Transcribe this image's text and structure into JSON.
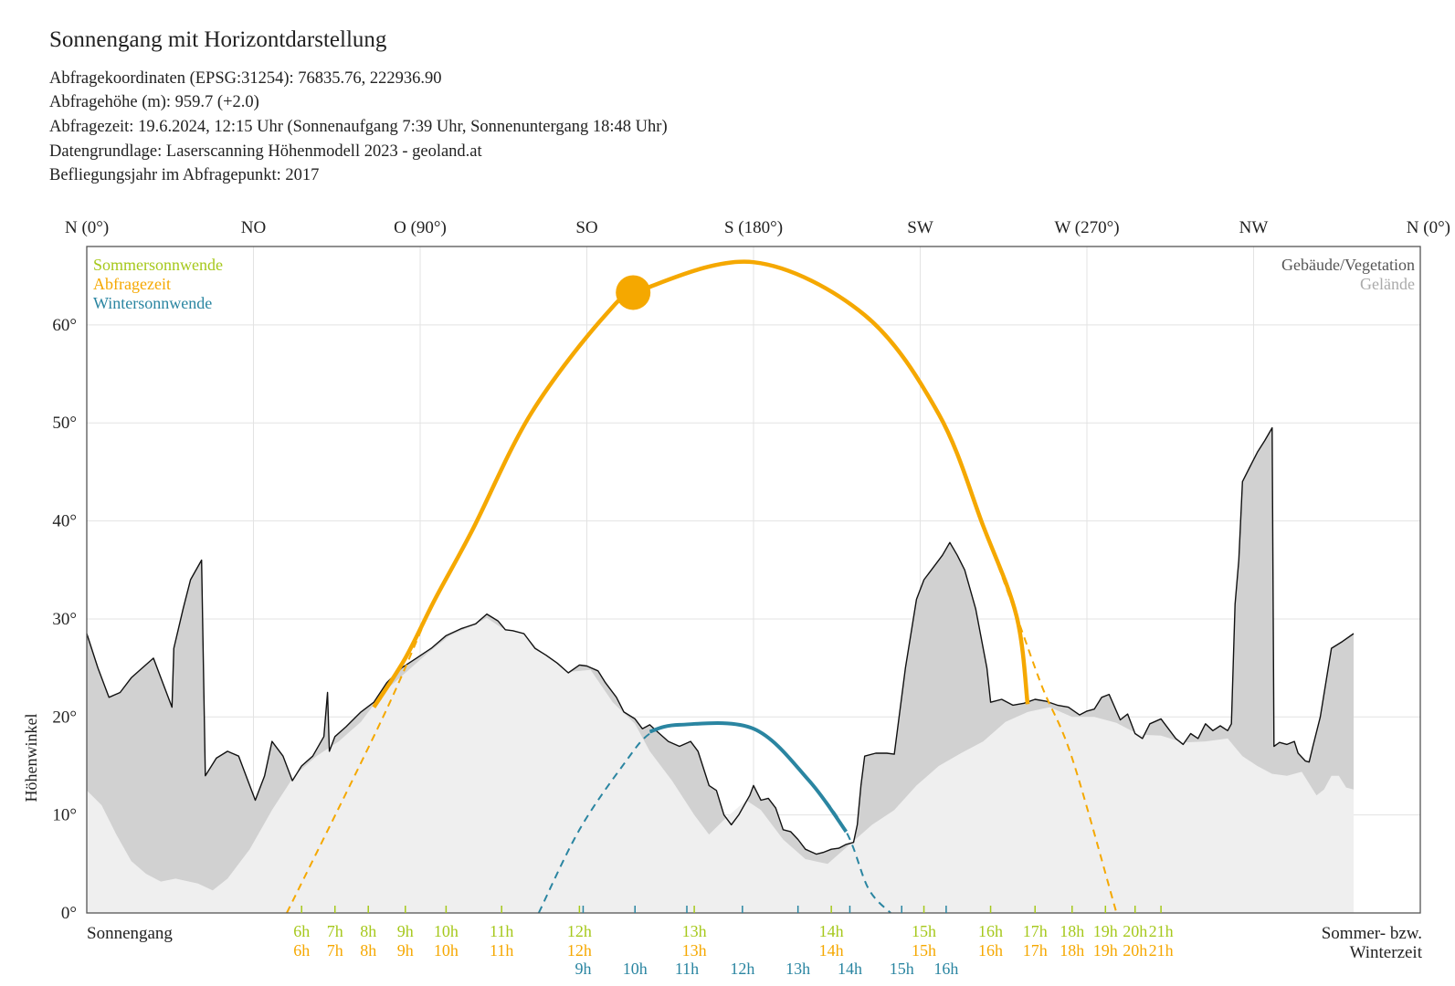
{
  "title": "Sonnengang mit Horizontdarstellung",
  "info": [
    "Abfragekoordinaten (EPSG:31254): 76835.76, 222936.90",
    "Abfragehöhe (m): 959.7 (+2.0)",
    "Abfragezeit: 19.6.2024, 12:15 Uhr (Sonnenaufgang 7:39 Uhr,  Sonnenuntergang 18:48 Uhr)",
    "Datengrundlage: Laserscanning Höhenmodell 2023 - geoland.at",
    "Befliegungsjahr im Abfragepunkt: 2017"
  ],
  "colors": {
    "summer": "#a6c81c",
    "query": "#f5a800",
    "winter": "#2a85a1",
    "building_fill": "#d1d1d1",
    "terrain_fill": "#efefef",
    "outline": "#111111",
    "grid": "#e3e3e3"
  },
  "chart_data": {
    "type": "area",
    "xlim": [
      0,
      360
    ],
    "ylim": [
      0,
      68
    ],
    "ylabel": "Höhenwinkel",
    "xlabel_left": "Sonnengang",
    "xlabel_right": [
      "Sommer- bzw.",
      "Winterzeit"
    ],
    "compass": [
      {
        "az": 0,
        "label": "N (0°)"
      },
      {
        "az": 45,
        "label": "NO"
      },
      {
        "az": 90,
        "label": "O (90°)"
      },
      {
        "az": 135,
        "label": "SO"
      },
      {
        "az": 180,
        "label": "S (180°)"
      },
      {
        "az": 225,
        "label": "SW"
      },
      {
        "az": 270,
        "label": "W (270°)"
      },
      {
        "az": 315,
        "label": "NW"
      },
      {
        "az": 360,
        "label": "N (0°)"
      }
    ],
    "y_ticks": [
      {
        "v": 0,
        "label": "0°"
      },
      {
        "v": 10,
        "label": "10°"
      },
      {
        "v": 20,
        "label": "20°"
      },
      {
        "v": 30,
        "label": "30°"
      },
      {
        "v": 40,
        "label": "40°"
      },
      {
        "v": 50,
        "label": "50°"
      },
      {
        "v": 60,
        "label": "60°"
      }
    ],
    "legend_left": [
      "Sommersonnwende",
      "Abfragezeit",
      "Wintersonnwende"
    ],
    "legend_right": [
      "Gebäude/Vegetation",
      "Gelände"
    ],
    "horizon_total": [
      [
        0,
        28.5
      ],
      [
        3,
        25
      ],
      [
        6,
        22
      ],
      [
        9,
        22.5
      ],
      [
        12,
        24
      ],
      [
        15,
        25
      ],
      [
        18,
        26
      ],
      [
        20,
        24
      ],
      [
        23,
        21
      ],
      [
        23.5,
        27
      ],
      [
        26,
        31
      ],
      [
        28,
        34
      ],
      [
        31,
        36
      ],
      [
        32,
        14
      ],
      [
        35,
        15.8
      ],
      [
        38,
        16.5
      ],
      [
        41,
        16
      ],
      [
        44,
        13
      ],
      [
        45.5,
        11.5
      ],
      [
        48,
        14
      ],
      [
        50,
        17.5
      ],
      [
        53,
        16
      ],
      [
        55.5,
        13.5
      ],
      [
        58,
        15
      ],
      [
        61,
        16
      ],
      [
        64,
        18
      ],
      [
        65,
        22.5
      ],
      [
        65.5,
        16.5
      ],
      [
        67,
        18
      ],
      [
        70,
        19
      ],
      [
        74,
        20.5
      ],
      [
        77.5,
        21.5
      ],
      [
        81,
        23.5
      ],
      [
        85,
        25
      ],
      [
        89,
        26
      ],
      [
        93,
        27
      ],
      [
        97,
        28.3
      ],
      [
        101,
        29
      ],
      [
        105,
        29.5
      ],
      [
        108,
        30.5
      ],
      [
        111,
        29.8
      ],
      [
        113,
        28.9
      ],
      [
        115,
        28.8
      ],
      [
        118,
        28.5
      ],
      [
        121,
        27
      ],
      [
        124,
        26.3
      ],
      [
        127,
        25.5
      ],
      [
        130,
        24.5
      ],
      [
        133,
        25.3
      ],
      [
        135,
        25.2
      ],
      [
        138,
        24.7
      ],
      [
        140,
        23.5
      ],
      [
        143,
        22
      ],
      [
        145,
        20.5
      ],
      [
        148,
        19.8
      ],
      [
        150,
        18.8
      ],
      [
        152,
        19.2
      ],
      [
        154,
        18.5
      ],
      [
        157,
        17.5
      ],
      [
        160,
        17
      ],
      [
        163,
        17.5
      ],
      [
        165,
        16.5
      ],
      [
        168,
        13
      ],
      [
        170,
        12.5
      ],
      [
        172,
        10
      ],
      [
        174,
        9
      ],
      [
        176,
        10
      ],
      [
        179,
        12
      ],
      [
        180,
        13
      ],
      [
        182,
        11.5
      ],
      [
        184,
        11.7
      ],
      [
        186,
        10.7
      ],
      [
        188,
        8.5
      ],
      [
        190,
        8.3
      ],
      [
        192,
        7.5
      ],
      [
        194,
        6.5
      ],
      [
        197,
        6
      ],
      [
        199,
        6.2
      ],
      [
        201,
        6.5
      ],
      [
        203,
        6.6
      ],
      [
        205,
        7
      ],
      [
        207,
        7.2
      ],
      [
        208,
        9
      ],
      [
        209,
        13
      ],
      [
        210,
        16
      ],
      [
        213,
        16.3
      ],
      [
        216,
        16.3
      ],
      [
        218,
        16.2
      ],
      [
        221,
        25
      ],
      [
        224,
        32
      ],
      [
        226,
        34
      ],
      [
        228,
        35
      ],
      [
        231,
        36.5
      ],
      [
        233,
        37.8
      ],
      [
        235,
        36.5
      ],
      [
        237,
        35
      ],
      [
        240,
        31
      ],
      [
        243,
        25
      ],
      [
        244,
        21.5
      ],
      [
        247,
        21.8
      ],
      [
        250,
        21.2
      ],
      [
        253,
        21.4
      ],
      [
        256,
        21.8
      ],
      [
        259,
        21.6
      ],
      [
        262,
        21.2
      ],
      [
        265,
        21
      ],
      [
        268,
        20.2
      ],
      [
        270,
        20.6
      ],
      [
        272,
        20.8
      ],
      [
        274,
        22
      ],
      [
        276,
        22.3
      ],
      [
        279,
        19.7
      ],
      [
        281,
        20.3
      ],
      [
        283,
        18.3
      ],
      [
        285,
        17.8
      ],
      [
        287,
        19.3
      ],
      [
        290,
        19.8
      ],
      [
        292,
        18.8
      ],
      [
        294,
        17.8
      ],
      [
        296,
        17.2
      ],
      [
        298,
        18.3
      ],
      [
        300,
        17.8
      ],
      [
        302,
        19.3
      ],
      [
        304,
        18.6
      ],
      [
        306,
        19.1
      ],
      [
        308,
        18.6
      ],
      [
        309,
        19.3
      ],
      [
        310,
        31.5
      ],
      [
        311,
        36
      ],
      [
        312,
        44
      ],
      [
        314,
        45.5
      ],
      [
        316,
        47
      ],
      [
        318,
        48.2
      ],
      [
        320,
        49.5
      ],
      [
        320.5,
        17
      ],
      [
        322,
        17.4
      ],
      [
        324,
        17.2
      ],
      [
        326,
        17.5
      ],
      [
        327,
        16.3
      ],
      [
        329,
        15.5
      ],
      [
        330,
        15.4
      ],
      [
        331,
        17
      ],
      [
        333,
        20
      ],
      [
        336,
        27
      ],
      [
        339,
        27.7
      ],
      [
        342,
        28.5
      ],
      [
        342,
        0
      ],
      [
        0,
        0
      ]
    ],
    "horizon_terrain": [
      [
        0,
        12.5
      ],
      [
        4,
        11
      ],
      [
        8,
        8
      ],
      [
        12,
        5.3
      ],
      [
        16,
        4
      ],
      [
        20,
        3.2
      ],
      [
        24,
        3.5
      ],
      [
        30,
        3
      ],
      [
        34,
        2.3
      ],
      [
        38,
        3.5
      ],
      [
        44,
        6.5
      ],
      [
        50,
        10.5
      ],
      [
        56,
        14
      ],
      [
        62,
        16
      ],
      [
        68,
        17.5
      ],
      [
        74,
        19.5
      ],
      [
        80,
        22.5
      ],
      [
        86,
        24.5
      ],
      [
        92,
        26.5
      ],
      [
        98,
        28.3
      ],
      [
        104,
        29.3
      ],
      [
        108,
        30.1
      ],
      [
        112,
        29.1
      ],
      [
        118,
        28.4
      ],
      [
        124,
        26.2
      ],
      [
        130,
        24.6
      ],
      [
        136,
        24.8
      ],
      [
        142,
        21.5
      ],
      [
        148,
        19.3
      ],
      [
        152,
        16.5
      ],
      [
        158,
        13.5
      ],
      [
        164,
        10
      ],
      [
        168,
        8
      ],
      [
        172,
        9.5
      ],
      [
        178,
        11.5
      ],
      [
        182,
        10.5
      ],
      [
        188,
        7.5
      ],
      [
        194,
        5.5
      ],
      [
        200,
        5
      ],
      [
        206,
        7
      ],
      [
        212,
        9
      ],
      [
        218,
        10.5
      ],
      [
        224,
        13
      ],
      [
        230,
        15
      ],
      [
        236,
        16.3
      ],
      [
        242,
        17.5
      ],
      [
        248,
        19.5
      ],
      [
        254,
        20.5
      ],
      [
        260,
        21
      ],
      [
        266,
        20
      ],
      [
        272,
        20
      ],
      [
        278,
        19.4
      ],
      [
        284,
        18.2
      ],
      [
        290,
        18.1
      ],
      [
        296,
        17.4
      ],
      [
        302,
        17.5
      ],
      [
        308,
        17.8
      ],
      [
        312,
        16
      ],
      [
        316,
        15
      ],
      [
        320,
        14.2
      ],
      [
        324,
        14
      ],
      [
        328,
        14.4
      ],
      [
        332,
        12
      ],
      [
        334,
        12.6
      ],
      [
        336,
        14
      ],
      [
        338,
        14
      ],
      [
        340,
        12.8
      ],
      [
        342,
        12.6
      ],
      [
        342,
        0
      ],
      [
        0,
        0
      ]
    ],
    "summer_path": [
      [
        54,
        0
      ],
      [
        80,
        20
      ],
      [
        94,
        32
      ],
      [
        104,
        39
      ],
      [
        120,
        51
      ],
      [
        140,
        61
      ],
      [
        150,
        63.6
      ],
      [
        180,
        66.4
      ],
      [
        210,
        61
      ],
      [
        230,
        50.9
      ],
      [
        242,
        39.5
      ],
      [
        251,
        30.3
      ],
      [
        258,
        23
      ],
      [
        266,
        15.8
      ],
      [
        278,
        0
      ]
    ],
    "summer_visible": [
      [
        77.5,
        21
      ],
      [
        86,
        26
      ],
      [
        94,
        32
      ],
      [
        104,
        39
      ],
      [
        120,
        51
      ],
      [
        140,
        61
      ],
      [
        150,
        63.6
      ],
      [
        180,
        66.4
      ],
      [
        210,
        61
      ],
      [
        230,
        50.9
      ],
      [
        242,
        39.5
      ],
      [
        251,
        30.3
      ],
      [
        254,
        21.3
      ]
    ],
    "winter_path": [
      [
        122,
        0
      ],
      [
        133,
        8.5
      ],
      [
        145,
        15.2
      ],
      [
        152,
        18.3
      ],
      [
        160,
        19.2
      ],
      [
        180,
        18.8
      ],
      [
        195,
        13.5
      ],
      [
        205,
        8.3
      ],
      [
        211,
        2.5
      ],
      [
        217,
        0
      ]
    ],
    "winter_visible": [
      [
        152,
        18.5
      ],
      [
        160,
        19.2
      ],
      [
        180,
        18.8
      ],
      [
        195,
        13.5
      ],
      [
        205,
        8.3
      ]
    ],
    "sun_position": {
      "az": 147.5,
      "alt": 63.3
    },
    "hour_ticks_summer": [
      {
        "az": 58,
        "label": "6h"
      },
      {
        "az": 67,
        "label": "7h"
      },
      {
        "az": 76,
        "label": "8h"
      },
      {
        "az": 86,
        "label": "9h"
      },
      {
        "az": 97,
        "label": "10h"
      },
      {
        "az": 112,
        "label": "11h"
      },
      {
        "az": 133,
        "label": "12h"
      },
      {
        "az": 164,
        "label": "13h"
      },
      {
        "az": 201,
        "label": "14h"
      },
      {
        "az": 226,
        "label": "15h"
      },
      {
        "az": 244,
        "label": "16h"
      },
      {
        "az": 256,
        "label": "17h"
      },
      {
        "az": 266,
        "label": "18h"
      },
      {
        "az": 275,
        "label": "19h"
      },
      {
        "az": 283,
        "label": "20h"
      },
      {
        "az": 290,
        "label": "21h"
      }
    ],
    "hour_ticks_query": [
      {
        "az": 58,
        "label": "6h"
      },
      {
        "az": 67,
        "label": "7h"
      },
      {
        "az": 76,
        "label": "8h"
      },
      {
        "az": 86,
        "label": "9h"
      },
      {
        "az": 97,
        "label": "10h"
      },
      {
        "az": 112,
        "label": "11h"
      },
      {
        "az": 133,
        "label": "12h"
      },
      {
        "az": 164,
        "label": "13h"
      },
      {
        "az": 201,
        "label": "14h"
      },
      {
        "az": 226,
        "label": "15h"
      },
      {
        "az": 244,
        "label": "16h"
      },
      {
        "az": 256,
        "label": "17h"
      },
      {
        "az": 266,
        "label": "18h"
      },
      {
        "az": 275,
        "label": "19h"
      },
      {
        "az": 283,
        "label": "20h"
      },
      {
        "az": 290,
        "label": "21h"
      }
    ],
    "hour_ticks_winter": [
      {
        "az": 134,
        "label": "9h"
      },
      {
        "az": 148,
        "label": "10h"
      },
      {
        "az": 162,
        "label": "11h"
      },
      {
        "az": 177,
        "label": "12h"
      },
      {
        "az": 192,
        "label": "13h"
      },
      {
        "az": 206,
        "label": "14h"
      },
      {
        "az": 220,
        "label": "15h"
      },
      {
        "az": 232,
        "label": "16h"
      }
    ]
  }
}
